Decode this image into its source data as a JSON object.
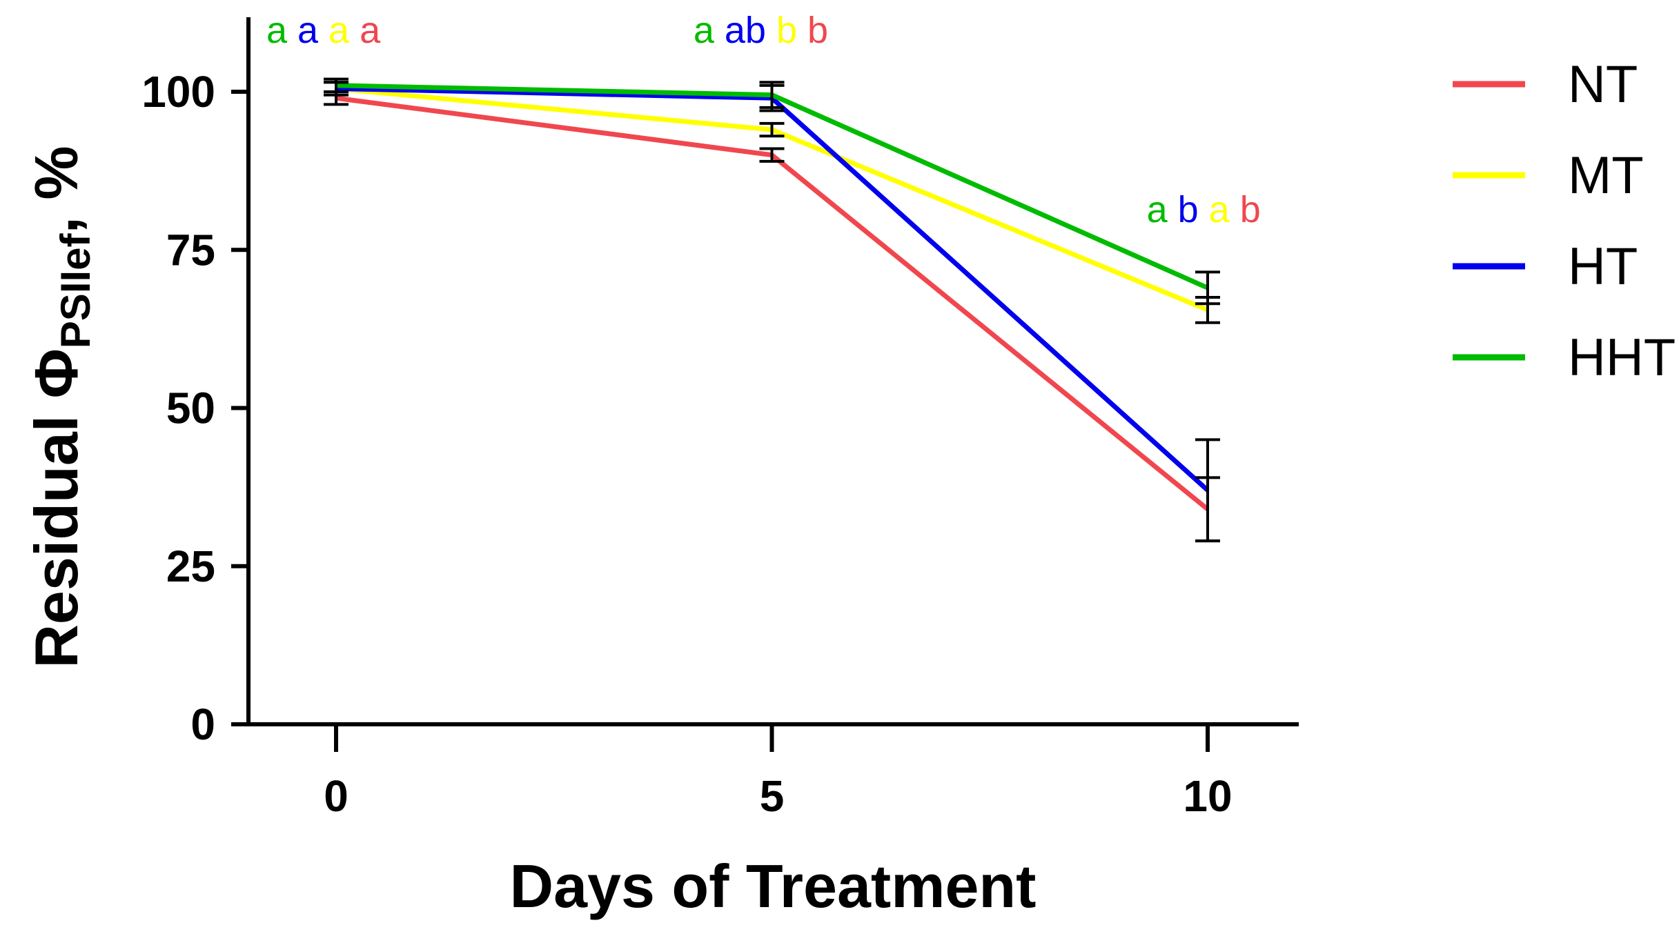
{
  "chart_data": {
    "type": "line",
    "title": "",
    "xlabel": "Days of Treatment",
    "ylabel": {
      "main": "Residual Φ",
      "subscript": "PSIIef",
      "suffix": ", %"
    },
    "x": [
      0,
      5,
      10
    ],
    "xticks": [
      "0",
      "5",
      "10"
    ],
    "yticks": [
      "0",
      "25",
      "50",
      "75",
      "100"
    ],
    "xlim": [
      -1,
      11.2
    ],
    "ylim": [
      0,
      110
    ],
    "legend_position": "right",
    "series": [
      {
        "name": "NT",
        "color": "#f0474e",
        "values": [
          99,
          90,
          34
        ],
        "err": [
          1,
          1,
          5
        ]
      },
      {
        "name": "MT",
        "color": "#ffff00",
        "values": [
          100.5,
          94,
          65.5
        ],
        "err": [
          1,
          1,
          2
        ]
      },
      {
        "name": "HT",
        "color": "#0000ee",
        "values": [
          100.5,
          99,
          37
        ],
        "err": [
          1,
          2,
          8
        ]
      },
      {
        "name": "HHT",
        "color": "#00bb00",
        "values": [
          101,
          99.5,
          69
        ],
        "err": [
          1,
          2,
          2.5
        ]
      }
    ],
    "significance": [
      {
        "x": 0,
        "letters": [
          "a",
          "a",
          "a",
          "a"
        ],
        "colors": [
          "#00bb00",
          "#0000ee",
          "#ffff00",
          "#f0474e"
        ]
      },
      {
        "x": 5,
        "letters": [
          "a",
          "ab",
          "b",
          "b"
        ],
        "colors": [
          "#00bb00",
          "#0000ee",
          "#ffff00",
          "#f0474e"
        ]
      },
      {
        "x": 10,
        "letters": [
          "a",
          "b",
          "a",
          "b"
        ],
        "colors": [
          "#00bb00",
          "#0000ee",
          "#ffff00",
          "#f0474e"
        ]
      }
    ]
  }
}
